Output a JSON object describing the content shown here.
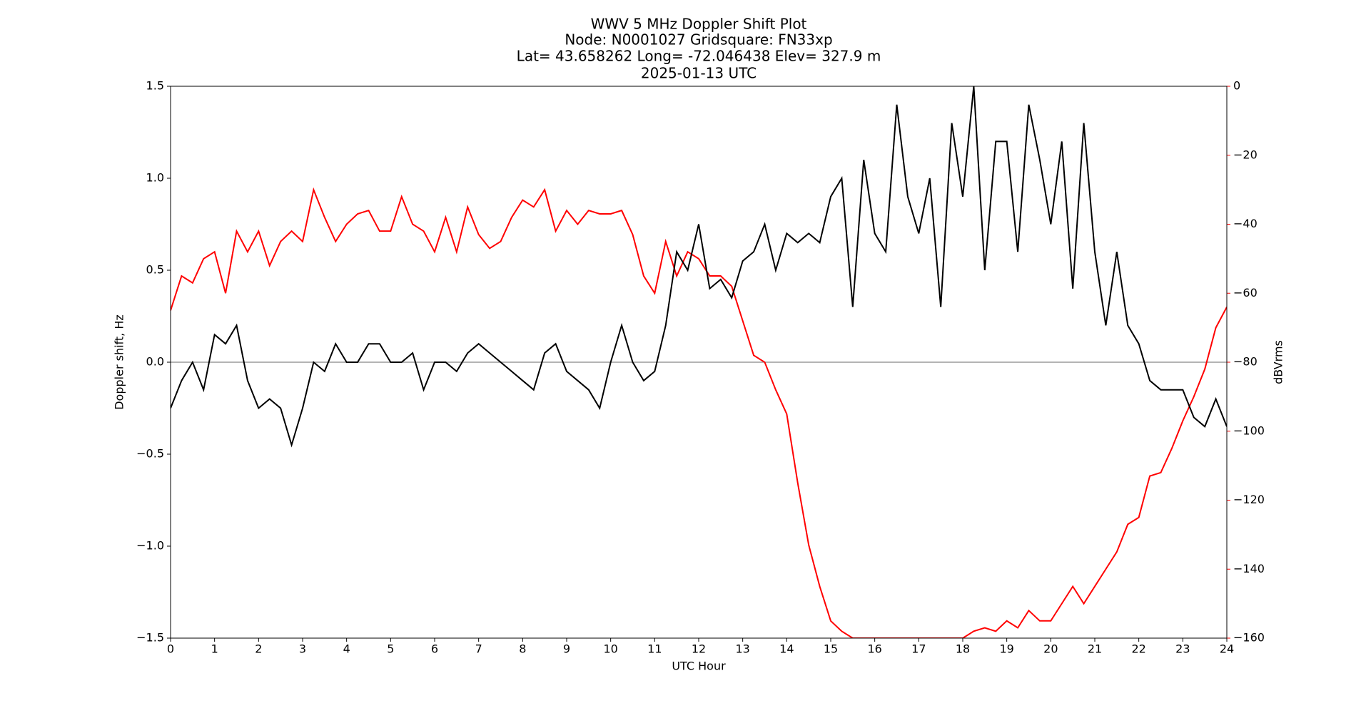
{
  "chart_data": {
    "type": "line",
    "title": [
      "WWV 5 MHz Doppler Shift Plot",
      "Node:  N0001027     Gridsquare:  FN33xp",
      "Lat=   43.658262    Long= -72.046438    Elev= 327.9 m",
      "2025-01-13  UTC"
    ],
    "x_label": "UTC Hour",
    "y_label": "Doppler shift, Hz",
    "y2_label": "dBVrms",
    "x": [
      0,
      0.25,
      0.5,
      0.75,
      1,
      1.25,
      1.5,
      1.75,
      2,
      2.25,
      2.5,
      2.75,
      3,
      3.25,
      3.5,
      3.75,
      4,
      4.25,
      4.5,
      4.75,
      5,
      5.25,
      5.5,
      5.75,
      6,
      6.25,
      6.5,
      6.75,
      7,
      7.25,
      7.5,
      7.75,
      8,
      8.25,
      8.5,
      8.75,
      9,
      9.25,
      9.5,
      9.75,
      10,
      10.25,
      10.5,
      10.75,
      11,
      11.25,
      11.5,
      11.75,
      12,
      12.25,
      12.5,
      12.75,
      13,
      13.25,
      13.5,
      13.75,
      14,
      14.25,
      14.5,
      14.75,
      15,
      15.25,
      15.5,
      15.75,
      16,
      16.25,
      16.5,
      16.75,
      17,
      17.25,
      17.5,
      17.75,
      18,
      18.25,
      18.5,
      18.75,
      19,
      19.25,
      19.5,
      19.75,
      20,
      20.25,
      20.5,
      20.75,
      21,
      21.25,
      21.5,
      21.75,
      22,
      22.25,
      22.5,
      22.75,
      23,
      23.25,
      23.5,
      23.75,
      24
    ],
    "series": [
      {
        "color": "#000000",
        "values": [
          -0.25,
          -0.1,
          0.0,
          -0.15,
          0.15,
          0.1,
          0.2,
          -0.1,
          -0.25,
          -0.2,
          -0.25,
          -0.45,
          -0.25,
          0.0,
          -0.05,
          0.1,
          0.0,
          0.0,
          0.1,
          0.1,
          0.0,
          0.0,
          0.05,
          -0.15,
          0.0,
          0.0,
          -0.05,
          0.05,
          0.1,
          0.05,
          0.0,
          -0.05,
          -0.1,
          -0.15,
          0.05,
          0.1,
          -0.05,
          -0.1,
          -0.15,
          -0.25,
          0.0,
          0.2,
          0.0,
          -0.1,
          -0.05,
          0.2,
          0.6,
          0.5,
          0.75,
          0.4,
          0.45,
          0.35,
          0.55,
          0.6,
          0.75,
          0.5,
          0.7,
          0.65,
          0.7,
          0.65,
          0.9,
          1.0,
          0.3,
          1.1,
          0.7,
          0.6,
          1.4,
          0.9,
          0.7,
          1.0,
          0.3,
          1.3,
          0.9,
          1.5,
          0.5,
          1.2,
          1.2,
          0.6,
          1.4,
          1.1,
          0.75,
          1.2,
          0.4,
          1.3,
          0.6,
          0.2,
          0.6,
          0.2,
          0.1,
          -0.1,
          -0.15,
          -0.15,
          -0.15,
          -0.3,
          -0.35,
          -0.2,
          -0.35
        ]
      },
      {
        "color": "#ff0000",
        "axis": "y2",
        "values": [
          -65,
          -55,
          -57,
          -50,
          -48,
          -60,
          -42,
          -48,
          -42,
          -52,
          -45,
          -42,
          -45,
          -30,
          -38,
          -45,
          -40,
          -37,
          -36,
          -42,
          -42,
          -32,
          -40,
          -42,
          -48,
          -38,
          -48,
          -35,
          -43,
          -47,
          -45,
          -38,
          -33,
          -35,
          -30,
          -42,
          -36,
          -40,
          -36,
          -37,
          -37,
          -36,
          -43,
          -55,
          -60,
          -45,
          -55,
          -48,
          -50,
          -55,
          -55,
          -58,
          -68,
          -78,
          -80,
          -88,
          -95,
          -115,
          -133,
          -145,
          -155,
          -158,
          -160,
          -160,
          -160,
          -160,
          -160,
          -160,
          -160,
          -160,
          -160,
          -160,
          -160,
          -158,
          -157,
          -158,
          -155,
          -157,
          -152,
          -155,
          -155,
          -150,
          -145,
          -150,
          -145,
          -140,
          -135,
          -127,
          -125,
          -113,
          -112,
          -105,
          -97,
          -90,
          -82,
          -70,
          -64
        ]
      }
    ],
    "xlim": [
      0,
      24
    ],
    "xticks": [
      0,
      1,
      2,
      3,
      4,
      5,
      6,
      7,
      8,
      9,
      10,
      11,
      12,
      13,
      14,
      15,
      16,
      17,
      18,
      19,
      20,
      21,
      22,
      23,
      24
    ],
    "ylim": [
      -1.5,
      1.5
    ],
    "yticks": [
      {
        "value": -1.5,
        "label": "−1.5"
      },
      {
        "value": -1.0,
        "label": "−1.0"
      },
      {
        "value": -0.5,
        "label": "−0.5"
      },
      {
        "value": 0,
        "label": "0.0"
      },
      0.5,
      {
        "value": 1.0,
        "label": "1.0"
      },
      1.5
    ],
    "y2lim": [
      -160,
      0
    ],
    "y2ticks": [
      {
        "value": -160,
        "label": "−160"
      },
      {
        "value": -140,
        "label": "−140"
      },
      {
        "value": -120,
        "label": "−120"
      },
      {
        "value": -100,
        "label": "−100"
      },
      {
        "value": -80,
        "label": "−80"
      },
      {
        "value": -60,
        "label": "−60"
      },
      {
        "value": -40,
        "label": "−40"
      },
      {
        "value": -20,
        "label": "−20"
      },
      0
    ],
    "hline": 0,
    "hline_color": "#888888",
    "y2_color": "#ff0000"
  }
}
